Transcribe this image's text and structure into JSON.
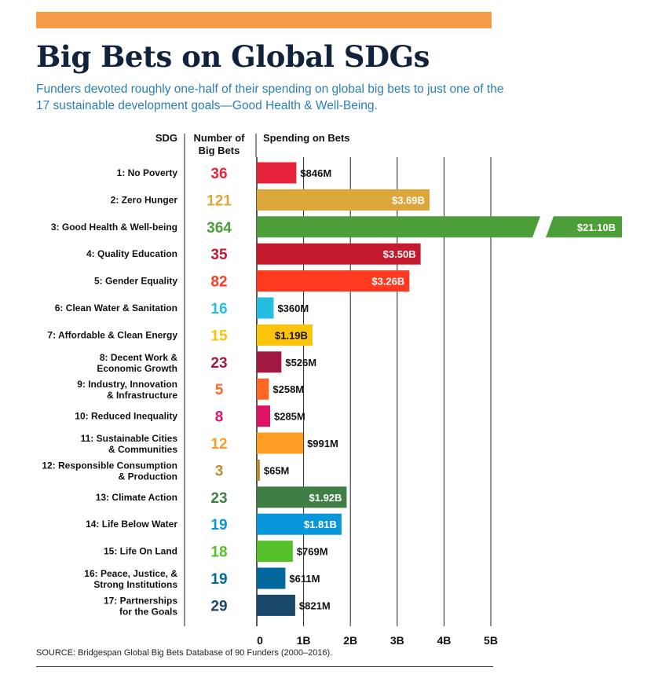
{
  "title": "Big Bets on Global SDGs",
  "subtitle": "Funders devoted roughly one-half of their spending on global big bets to just one of the 17 sustainable development goals—Good Health & Well-Being.",
  "source": "SOURCE: Bridgespan Global Big Bets Database of 90 Funders (2000–2016).",
  "colors": {
    "top_bar": "#f79a45",
    "title": "#10223c",
    "subtitle": "#2c7fb5"
  },
  "chart_data": {
    "type": "bar",
    "orientation": "horizontal",
    "columns": [
      "SDG",
      "Number of Big Bets",
      "Spending on Bets"
    ],
    "xlim": [
      0,
      5
    ],
    "ticks": [
      "0",
      "1B",
      "2B",
      "3B",
      "4B",
      "5B"
    ],
    "grid": true,
    "broken_axis_note": "Bar for SDG 3 is truncated (axis break) because value exceeds range",
    "rows": [
      {
        "sdg": "1: No Poverty",
        "bets": "36",
        "value": 0.846,
        "label": "$846M",
        "color": "#e5243b"
      },
      {
        "sdg": "2: Zero Hunger",
        "bets": "121",
        "value": 3.69,
        "label": "$3.69B",
        "color": "#dda63a"
      },
      {
        "sdg": "3: Good Health & Well-being",
        "bets": "364",
        "value": 21.1,
        "label": "$21.10B",
        "color": "#4c9f38",
        "broken": true
      },
      {
        "sdg": "4: Quality Education",
        "bets": "35",
        "value": 3.5,
        "label": "$3.50B",
        "color": "#c5192d"
      },
      {
        "sdg": "5: Gender Equality",
        "bets": "82",
        "value": 3.26,
        "label": "$3.26B",
        "color": "#ff3a21"
      },
      {
        "sdg": "6: Clean Water & Sanitation",
        "bets": "16",
        "value": 0.36,
        "label": "$360M",
        "color": "#26bde2"
      },
      {
        "sdg": "7: Affordable & Clean Energy",
        "bets": "15",
        "value": 1.19,
        "label": "$1.19B",
        "color": "#fcc30b",
        "label_inside_dark": true
      },
      {
        "sdg": "8: Decent Work & Economic Growth",
        "bets": "23",
        "value": 0.526,
        "label": "$526M",
        "color": "#a21942"
      },
      {
        "sdg": "9: Industry, Innovation & Infrastructure",
        "bets": "5",
        "value": 0.258,
        "label": "$258M",
        "color": "#fd6925"
      },
      {
        "sdg": "10: Reduced Inequality",
        "bets": "8",
        "value": 0.285,
        "label": "$285M",
        "color": "#dd1367"
      },
      {
        "sdg": "11: Sustainable Cities & Communities",
        "bets": "12",
        "value": 0.991,
        "label": "$991M",
        "color": "#fd9d24"
      },
      {
        "sdg": "12: Responsible Consumption & Production",
        "bets": "3",
        "value": 0.065,
        "label": "$65M",
        "color": "#bf8b2e"
      },
      {
        "sdg": "13: Climate Action",
        "bets": "23",
        "value": 1.92,
        "label": "$1.92B",
        "color": "#3f7e44"
      },
      {
        "sdg": "14: Life Below Water",
        "bets": "19",
        "value": 1.81,
        "label": "$1.81B",
        "color": "#0a97d9"
      },
      {
        "sdg": "15: Life On Land",
        "bets": "18",
        "value": 0.769,
        "label": "$769M",
        "color": "#56c02b"
      },
      {
        "sdg": "16: Peace, Justice, & Strong Institutions",
        "bets": "19",
        "value": 0.611,
        "label": "$611M",
        "color": "#00689d"
      },
      {
        "sdg": "17: Partnerships for the Goals",
        "bets": "29",
        "value": 0.821,
        "label": "$821M",
        "color": "#19486a"
      }
    ]
  }
}
